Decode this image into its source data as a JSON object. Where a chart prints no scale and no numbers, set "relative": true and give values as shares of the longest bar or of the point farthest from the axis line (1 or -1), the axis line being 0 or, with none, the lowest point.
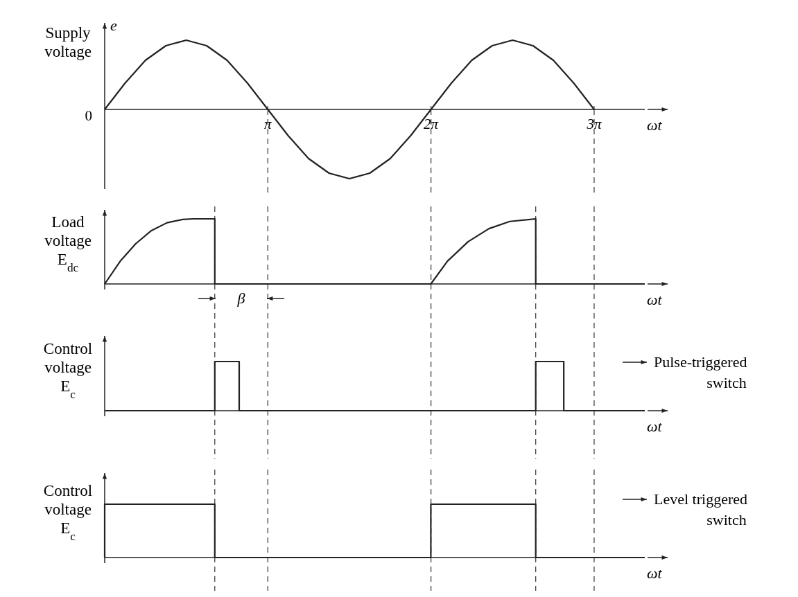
{
  "chart_data": [
    {
      "type": "line",
      "ylabel": "Supply voltage",
      "xlabel": "ωt",
      "relative": true,
      "tick_labels": "x",
      "xlim": [
        0,
        10.4
      ],
      "xticks": [
        {
          "value": 3.1416,
          "label": "π"
        },
        {
          "value": 6.2832,
          "label": "2π"
        },
        {
          "value": 9.4248,
          "label": "3π"
        }
      ],
      "series": [
        {
          "color": "#222222",
          "x": [
            0,
            0.3927,
            0.7854,
            1.1781,
            1.5708,
            1.9635,
            2.3562,
            2.7489,
            3.1416,
            3.5343,
            3.927,
            4.3197,
            4.7124,
            5.1051,
            5.4978,
            5.8905,
            6.2832,
            6.6759,
            7.0686,
            7.4613,
            7.854,
            8.2467,
            8.6394,
            9.0321,
            9.4248
          ],
          "values": [
            0,
            0.38,
            0.71,
            0.92,
            1,
            0.92,
            0.71,
            0.38,
            0,
            -0.38,
            -0.71,
            -0.92,
            -1,
            -0.92,
            -0.71,
            -0.38,
            0,
            0.38,
            0.71,
            0.92,
            1,
            0.92,
            0.71,
            0.38,
            0
          ]
        }
      ],
      "annotations": [
        "e",
        {
          "text": "0",
          "x": 0,
          "y": 0
        }
      ],
      "ref_lines": [
        {
          "axis": "x",
          "value": 3.1416,
          "line_style": "dashed"
        },
        {
          "axis": "x",
          "value": 6.2832,
          "line_style": "dashed"
        },
        {
          "axis": "x",
          "value": 9.4248,
          "line_style": "dashed"
        }
      ]
    },
    {
      "type": "line",
      "ylabel": "Load voltage E$_{dc}$",
      "xlabel": "ωt",
      "relative": true,
      "tick_labels": false,
      "xlim": [
        0,
        10.4
      ],
      "series": [
        {
          "color": "#222222",
          "x": [
            0,
            0.3,
            0.6,
            0.9,
            1.2,
            1.5,
            1.7,
            2.12,
            2.12,
            6.28,
            6.6,
            7.0,
            7.4,
            7.8,
            8.3,
            8.3,
            10.4
          ],
          "values": [
            0,
            0.35,
            0.62,
            0.82,
            0.94,
            0.99,
            1,
            1,
            0,
            0,
            0.35,
            0.65,
            0.85,
            0.96,
            1,
            0,
            0
          ]
        }
      ],
      "annotations": [
        {
          "text": "β",
          "x": 2.63,
          "y": 0
        }
      ],
      "ref_lines": [
        {
          "axis": "x",
          "value": 2.12,
          "line_style": "dashed"
        },
        {
          "axis": "x",
          "value": 3.1416,
          "line_style": "dashed"
        },
        {
          "axis": "x",
          "value": 6.2832,
          "line_style": "dashed"
        },
        {
          "axis": "x",
          "value": 8.3,
          "line_style": "dashed"
        },
        {
          "axis": "x",
          "value": 9.4248,
          "line_style": "dashed"
        }
      ]
    },
    {
      "type": "line",
      "ylabel": "Control voltage E$_{c}$",
      "xlabel": "ωt",
      "relative": true,
      "tick_labels": false,
      "xlim": [
        0,
        10.4
      ],
      "series": [
        {
          "color": "#222222",
          "x": [
            0,
            2.12,
            2.12,
            2.59,
            2.59,
            8.3,
            8.3,
            8.84,
            8.84,
            10.4
          ],
          "values": [
            0,
            0,
            1,
            1,
            0,
            0,
            1,
            1,
            0,
            0
          ]
        }
      ],
      "annotations": [
        "Pulse-triggered switch"
      ],
      "ref_lines": [
        {
          "axis": "x",
          "value": 2.12,
          "line_style": "dashed"
        },
        {
          "axis": "x",
          "value": 3.1416,
          "line_style": "dashed"
        },
        {
          "axis": "x",
          "value": 6.2832,
          "line_style": "dashed"
        },
        {
          "axis": "x",
          "value": 8.3,
          "line_style": "dashed"
        },
        {
          "axis": "x",
          "value": 9.4248,
          "line_style": "dashed"
        }
      ]
    },
    {
      "type": "line",
      "ylabel": "Control voltage E$_{c}$",
      "xlabel": "ωt",
      "relative": true,
      "tick_labels": false,
      "xlim": [
        0,
        10.4
      ],
      "series": [
        {
          "color": "#222222",
          "x": [
            0,
            0,
            2.12,
            2.12,
            6.28,
            6.28,
            8.3,
            8.3,
            10.4
          ],
          "values": [
            0,
            1,
            1,
            0,
            0,
            1,
            1,
            0,
            0
          ]
        }
      ],
      "annotations": [
        "Level triggered switch"
      ],
      "ref_lines": [
        {
          "axis": "x",
          "value": 2.12,
          "line_style": "dashed"
        },
        {
          "axis": "x",
          "value": 3.1416,
          "line_style": "dashed"
        },
        {
          "axis": "x",
          "value": 6.2832,
          "line_style": "dashed"
        },
        {
          "axis": "x",
          "value": 8.3,
          "line_style": "dashed"
        },
        {
          "axis": "x",
          "value": 9.4248,
          "line_style": "dashed"
        }
      ]
    }
  ]
}
